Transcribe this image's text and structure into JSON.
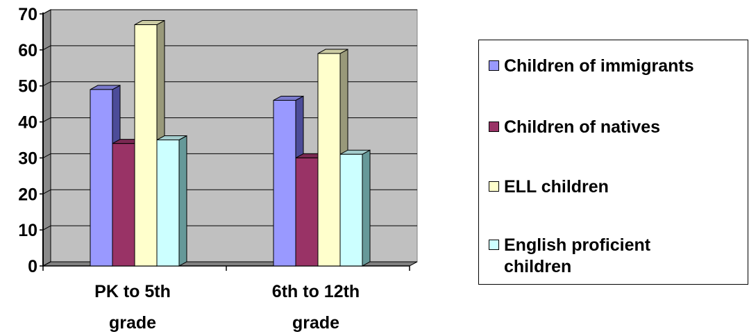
{
  "chart_data": {
    "type": "bar",
    "style": "3d-clustered-column",
    "categories": [
      "PK to 5th grade",
      "6th to 12th grade"
    ],
    "category_label_lines": [
      [
        "PK to 5th",
        "grade"
      ],
      [
        "6th to 12th",
        "grade"
      ]
    ],
    "series": [
      {
        "name": "Children of immigrants",
        "values": [
          49,
          46
        ],
        "color": "#9999ff",
        "side_color": "#4c4c99",
        "top_color": "#7a7acc"
      },
      {
        "name": "Children of natives",
        "values": [
          34,
          30
        ],
        "color": "#993366",
        "side_color": "#4c1933",
        "top_color": "#7a2952"
      },
      {
        "name": "ELL children",
        "values": [
          67,
          59
        ],
        "color": "#ffffcc",
        "side_color": "#99997a",
        "top_color": "#cccca3"
      },
      {
        "name": "English proficient children",
        "values": [
          35,
          31
        ],
        "color": "#ccffff",
        "side_color": "#669999",
        "top_color": "#a3cccc"
      }
    ],
    "ylim": [
      0,
      70
    ],
    "yticks": [
      0,
      10,
      20,
      30,
      40,
      50,
      60,
      70
    ],
    "xlabel": "",
    "ylabel": "",
    "title": "",
    "grid": true,
    "legend_position": "right",
    "wall_color": "#c0c0c0"
  }
}
